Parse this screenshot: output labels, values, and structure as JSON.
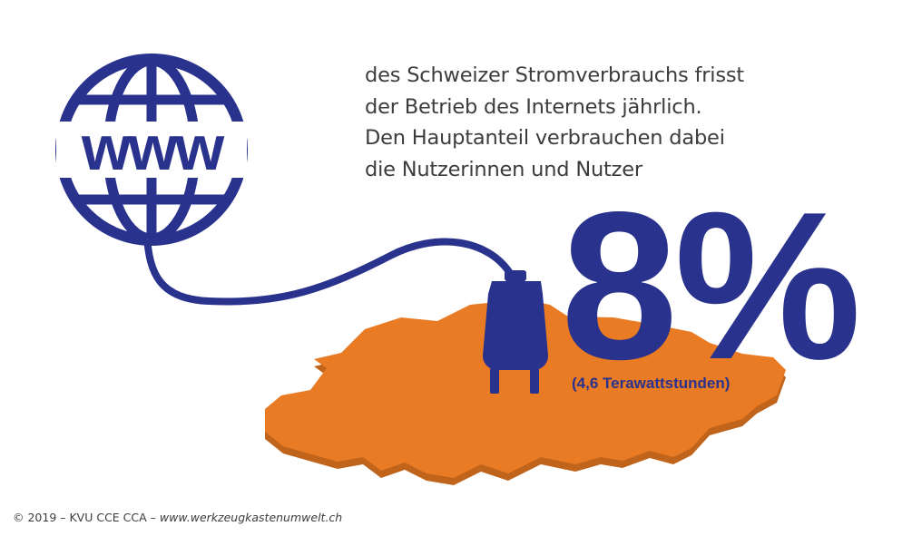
{
  "description_lines": [
    "des Schweizer Stromverbrauchs frisst",
    "der Betrieb des Internets jährlich.",
    "Den Hauptanteil verbrauchen dabei",
    "die Nutzerinnen und Nutzer"
  ],
  "headline_value": "8%",
  "headline_note": "(4,6 Terawattstunden)",
  "globe_label": "www",
  "credit_text": "© 2019 – KVU CCE CCA – ",
  "credit_url": "www.werkzeugkastenumwelt.ch",
  "colors": {
    "accent_blue": "#29328c",
    "map_orange": "#e97b24",
    "map_shadow": "#c0631b",
    "text_gray": "#3c3c3c"
  },
  "icons": [
    "globe-www-icon",
    "power-plug-icon",
    "switzerland-map"
  ]
}
